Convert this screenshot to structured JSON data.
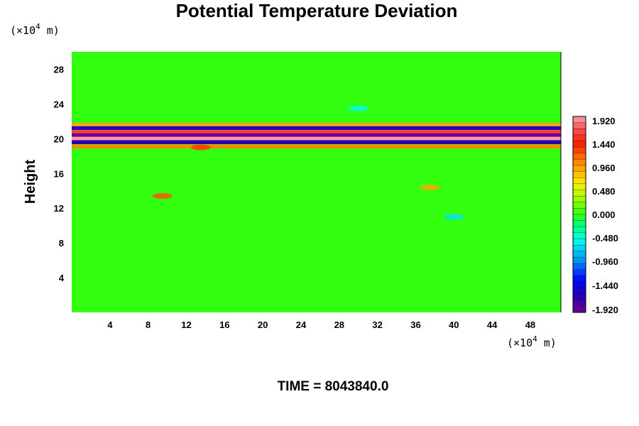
{
  "chart_data": {
    "type": "heatmap",
    "title": "Potential Temperature Deviation",
    "ylabel": "Height",
    "xlabel": "",
    "x_unit_prefix": "(×10",
    "x_unit_exp": "4",
    "x_unit_suffix": " m)",
    "y_unit_prefix": "(×10",
    "y_unit_exp": "4",
    "y_unit_suffix": " m)",
    "x_ticks": [
      "4",
      "8",
      "12",
      "16",
      "20",
      "24",
      "28",
      "32",
      "36",
      "40",
      "44",
      "48"
    ],
    "x_tick_values": [
      4,
      8,
      12,
      16,
      20,
      24,
      28,
      32,
      36,
      40,
      44,
      48
    ],
    "y_ticks": [
      "4",
      "8",
      "12",
      "16",
      "20",
      "24",
      "28"
    ],
    "y_tick_values": [
      4,
      8,
      12,
      16,
      20,
      24,
      28
    ],
    "xlim": [
      0,
      51.2
    ],
    "ylim": [
      0,
      30
    ],
    "colorbar": {
      "labels": [
        "1.920",
        "1.440",
        "0.960",
        "0.480",
        "0.000",
        "-0.480",
        "-0.960",
        "-1.440",
        "-1.920"
      ],
      "values": [
        1.92,
        1.44,
        0.96,
        0.48,
        0.0,
        -0.48,
        -0.96,
        -1.44,
        -1.92
      ],
      "range": [
        -1.92,
        1.92
      ],
      "levels": 32
    },
    "field": {
      "background_value": 0.0,
      "bands": [
        {
          "y": 21.6,
          "value": 0.9
        },
        {
          "y": 21.2,
          "value": -1.5
        },
        {
          "y": 20.8,
          "value": 1.6
        },
        {
          "y": 20.4,
          "value": -1.9
        },
        {
          "y": 20.0,
          "value": 1.9
        },
        {
          "y": 19.6,
          "value": -1.6
        },
        {
          "y": 19.1,
          "value": 1.0
        }
      ],
      "features": [
        {
          "x": 9.5,
          "y": 13.4,
          "value": 1.2
        },
        {
          "x": 37.5,
          "y": 14.4,
          "value": 0.9
        },
        {
          "x": 13.5,
          "y": 19.0,
          "value": 1.3
        },
        {
          "x": 30,
          "y": 23.5,
          "value": -0.5
        },
        {
          "x": 40,
          "y": 11.0,
          "value": -0.6
        }
      ]
    },
    "colors": {
      "background": "#ffffff",
      "field_base": "#33ff11"
    }
  },
  "footer": {
    "time_label": "TIME = 8043840.0"
  }
}
